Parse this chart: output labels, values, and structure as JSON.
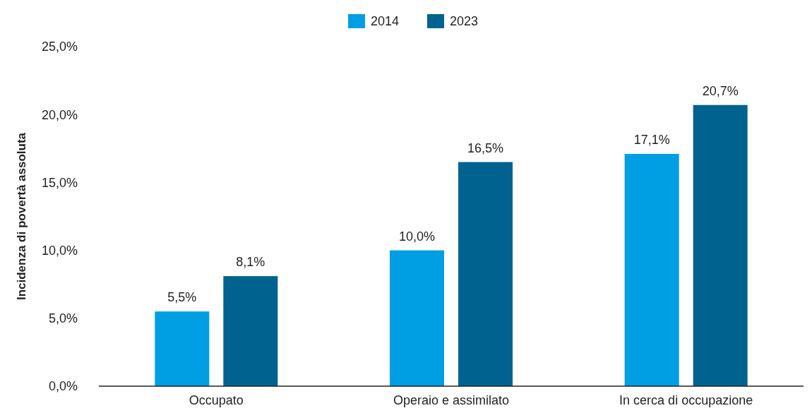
{
  "chart_data": {
    "type": "bar",
    "ylabel": "Incidenza di povertà assoluta",
    "categories": [
      "Occupato",
      "Operaio e assimilato",
      "In cerca di occupazione"
    ],
    "series": [
      {
        "name": "2014",
        "color": "#009fe3",
        "values": [
          5.5,
          10.0,
          17.1
        ],
        "value_labels": [
          "5,5%",
          "10,0%",
          "17,1%"
        ]
      },
      {
        "name": "2023",
        "color": "#00628f",
        "values": [
          8.1,
          16.5,
          20.7
        ],
        "value_labels": [
          "8,1%",
          "16,5%",
          "20,7%"
        ]
      }
    ],
    "ylim": [
      0,
      25
    ],
    "yticks": [
      {
        "value": 0,
        "label": "0,0%"
      },
      {
        "value": 5,
        "label": "5,0%"
      },
      {
        "value": 10,
        "label": "10,0%"
      },
      {
        "value": 15,
        "label": "15,0%"
      },
      {
        "value": 20,
        "label": "20,0%"
      },
      {
        "value": 25,
        "label": "25,0%"
      }
    ],
    "grid": false,
    "legend": "top"
  }
}
